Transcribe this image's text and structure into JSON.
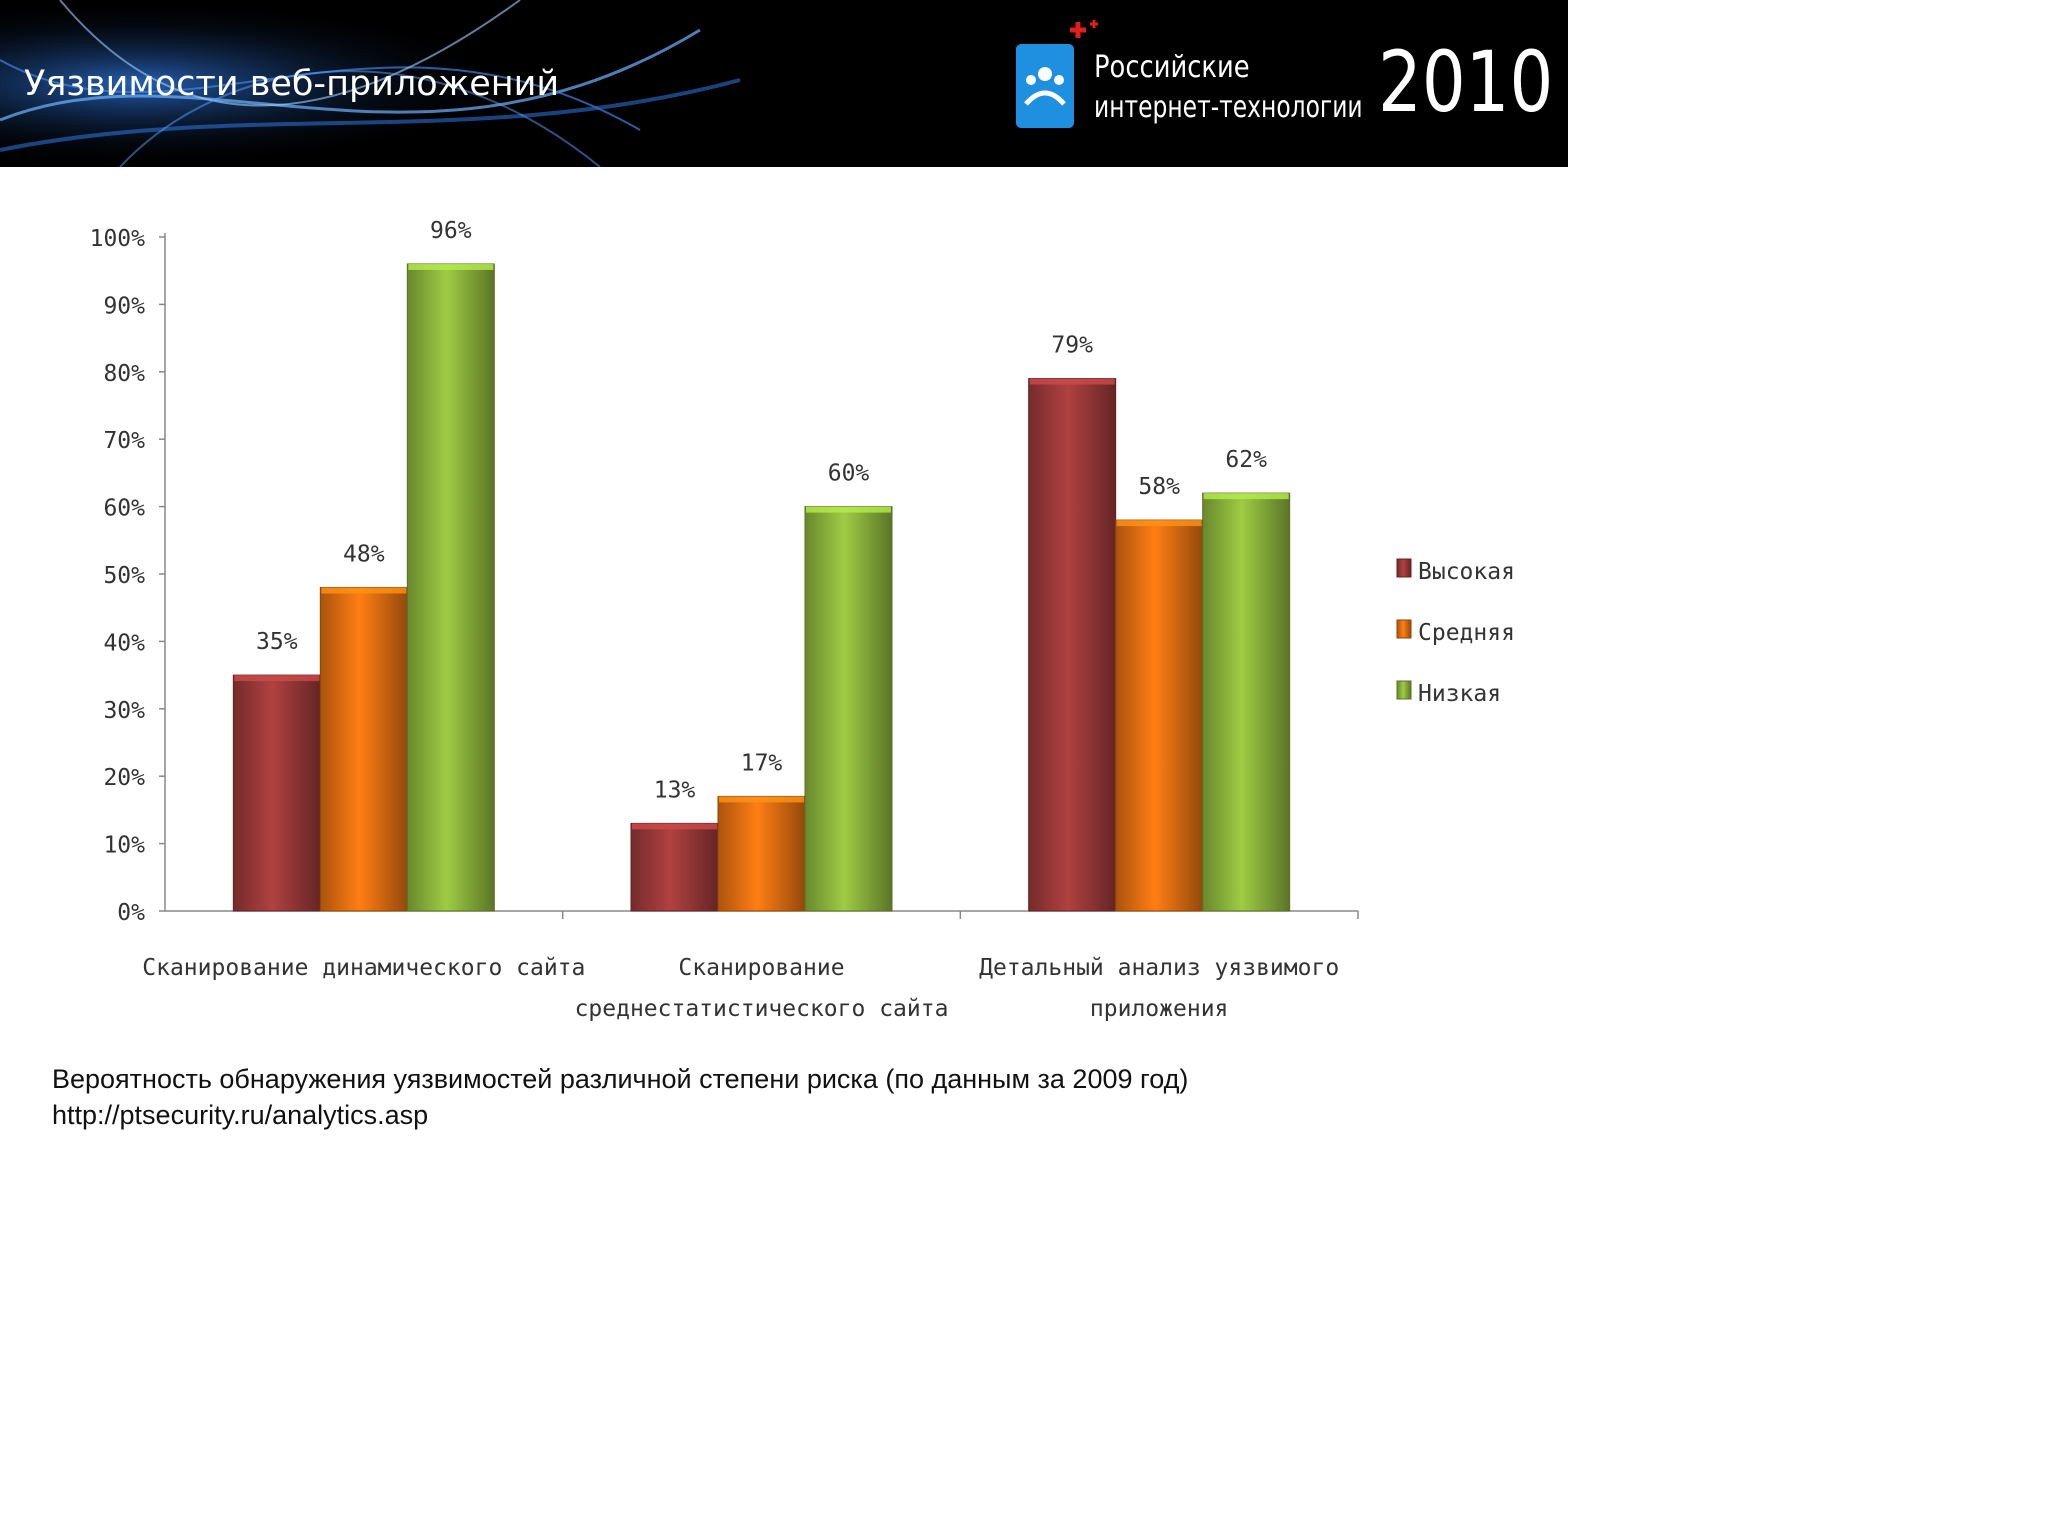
{
  "header": {
    "title": "Уязвимости веб-приложений",
    "logo_line1": "Российские",
    "logo_line2": "интернет-технологии",
    "logo_year": "2010"
  },
  "caption": {
    "line1": "Вероятность обнаружения уязвимостей различной степени риска (по данным за 2009 год)",
    "line2": "http://ptsecurity.ru/analytics.asp"
  },
  "colors": {
    "high": "#a33c3c",
    "medium": "#ee7512",
    "low": "#92bd3f",
    "banner_blue": "#1f8fe0"
  },
  "chart_data": {
    "type": "bar",
    "title": "",
    "xlabel": "",
    "ylabel": "",
    "ylim": [
      0,
      100
    ],
    "yticks": [
      "0%",
      "10%",
      "20%",
      "30%",
      "40%",
      "50%",
      "60%",
      "70%",
      "80%",
      "90%",
      "100%"
    ],
    "categories": [
      [
        "Сканирование динамического сайта"
      ],
      [
        "Сканирование",
        "среднестатистического сайта"
      ],
      [
        "Детальный анализ уязвимого",
        "приложения"
      ]
    ],
    "series": [
      {
        "name": "Высокая",
        "key": "high",
        "values": [
          35,
          13,
          79
        ],
        "labels": [
          "35%",
          "13%",
          "79%"
        ]
      },
      {
        "name": "Средняя",
        "key": "medium",
        "values": [
          48,
          17,
          58
        ],
        "labels": [
          "48%",
          "17%",
          "58%"
        ]
      },
      {
        "name": "Низкая",
        "key": "low",
        "values": [
          96,
          60,
          62
        ],
        "labels": [
          "96%",
          "60%",
          "62%"
        ]
      }
    ],
    "legend_position": "right"
  }
}
